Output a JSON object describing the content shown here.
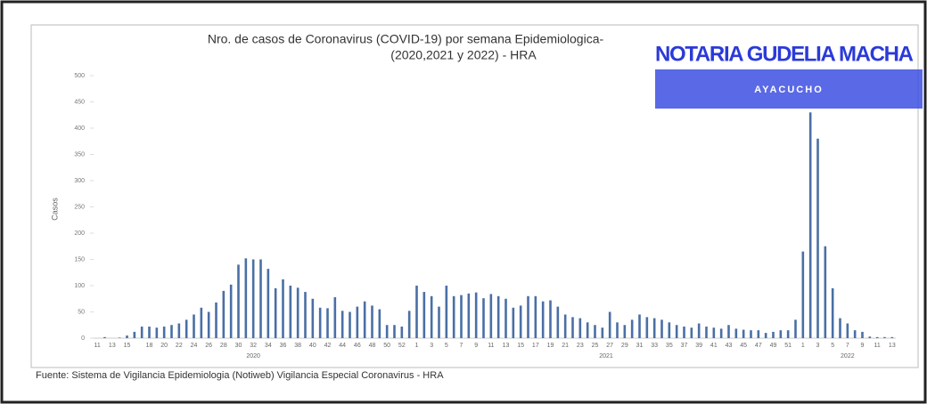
{
  "chart_data": {
    "type": "bar",
    "title": [
      "Nro. de casos de Coronavirus (COVID-19) por semana Epidemiologica-",
      "(2020,2021 y 2022) - HRA"
    ],
    "y_label": "Casos",
    "color": "#4a6fa5",
    "ylim": [
      0,
      500
    ],
    "yticks": [
      0,
      50,
      100,
      150,
      200,
      250,
      300,
      350,
      400,
      450,
      500
    ],
    "groups": [
      {
        "name": "2020",
        "categories": [
          "11",
          null,
          "13",
          null,
          "15",
          null,
          null,
          "18",
          null,
          "20",
          null,
          "22",
          null,
          "24",
          null,
          "26",
          null,
          "28",
          null,
          "30",
          null,
          "32",
          null,
          "34",
          null,
          "36",
          null,
          "38",
          null,
          "40",
          null,
          "42",
          null,
          "44",
          null,
          "46",
          null,
          "48",
          null,
          "50",
          null,
          "52",
          null
        ],
        "values": [
          0,
          2,
          0,
          1,
          5,
          12,
          22,
          22,
          20,
          22,
          25,
          28,
          35,
          45,
          58,
          50,
          68,
          90,
          102,
          140,
          152,
          150,
          150,
          132,
          95,
          112,
          100,
          96,
          88,
          75,
          58,
          57,
          78,
          52,
          50,
          60,
          70,
          62,
          55,
          25,
          25,
          22,
          52
        ]
      },
      {
        "name": "2021",
        "categories": [
          "1",
          null,
          "3",
          null,
          "5",
          null,
          "7",
          null,
          "9",
          null,
          "11",
          null,
          "13",
          null,
          "15",
          null,
          "17",
          null,
          "19",
          null,
          "21",
          null,
          "23",
          null,
          "25",
          null,
          "27",
          null,
          "29",
          null,
          "31",
          null,
          "33",
          null,
          "35",
          null,
          "37",
          null,
          "39",
          null,
          "41",
          null,
          "43",
          null,
          "45",
          null,
          "47",
          null,
          "49",
          null,
          "51",
          null
        ],
        "values": [
          100,
          88,
          80,
          60,
          100,
          80,
          82,
          85,
          87,
          76,
          84,
          80,
          75,
          58,
          62,
          80,
          80,
          70,
          72,
          60,
          45,
          40,
          38,
          30,
          25,
          20,
          50,
          30,
          25,
          35,
          45,
          40,
          38,
          35,
          30,
          25,
          22,
          20,
          28,
          22,
          20,
          18,
          25,
          18,
          16,
          15,
          15,
          10,
          12,
          15,
          15,
          35
        ]
      },
      {
        "name": "2022",
        "categories": [
          "1",
          null,
          "3",
          null,
          "5",
          null,
          "7",
          null,
          "9",
          null,
          "11",
          null,
          "13"
        ],
        "values": [
          165,
          430,
          380,
          175,
          95,
          38,
          28,
          15,
          12,
          3,
          2,
          2,
          2
        ]
      }
    ],
    "source": "Fuente: Sistema de Vigilancia Epidemiologia (Notiweb) Vigilancia Especial Coronavirus - HRA"
  },
  "stamp": {
    "name": "NOTARIA GUDELIA MACHA",
    "city": "AYACUCHO"
  }
}
